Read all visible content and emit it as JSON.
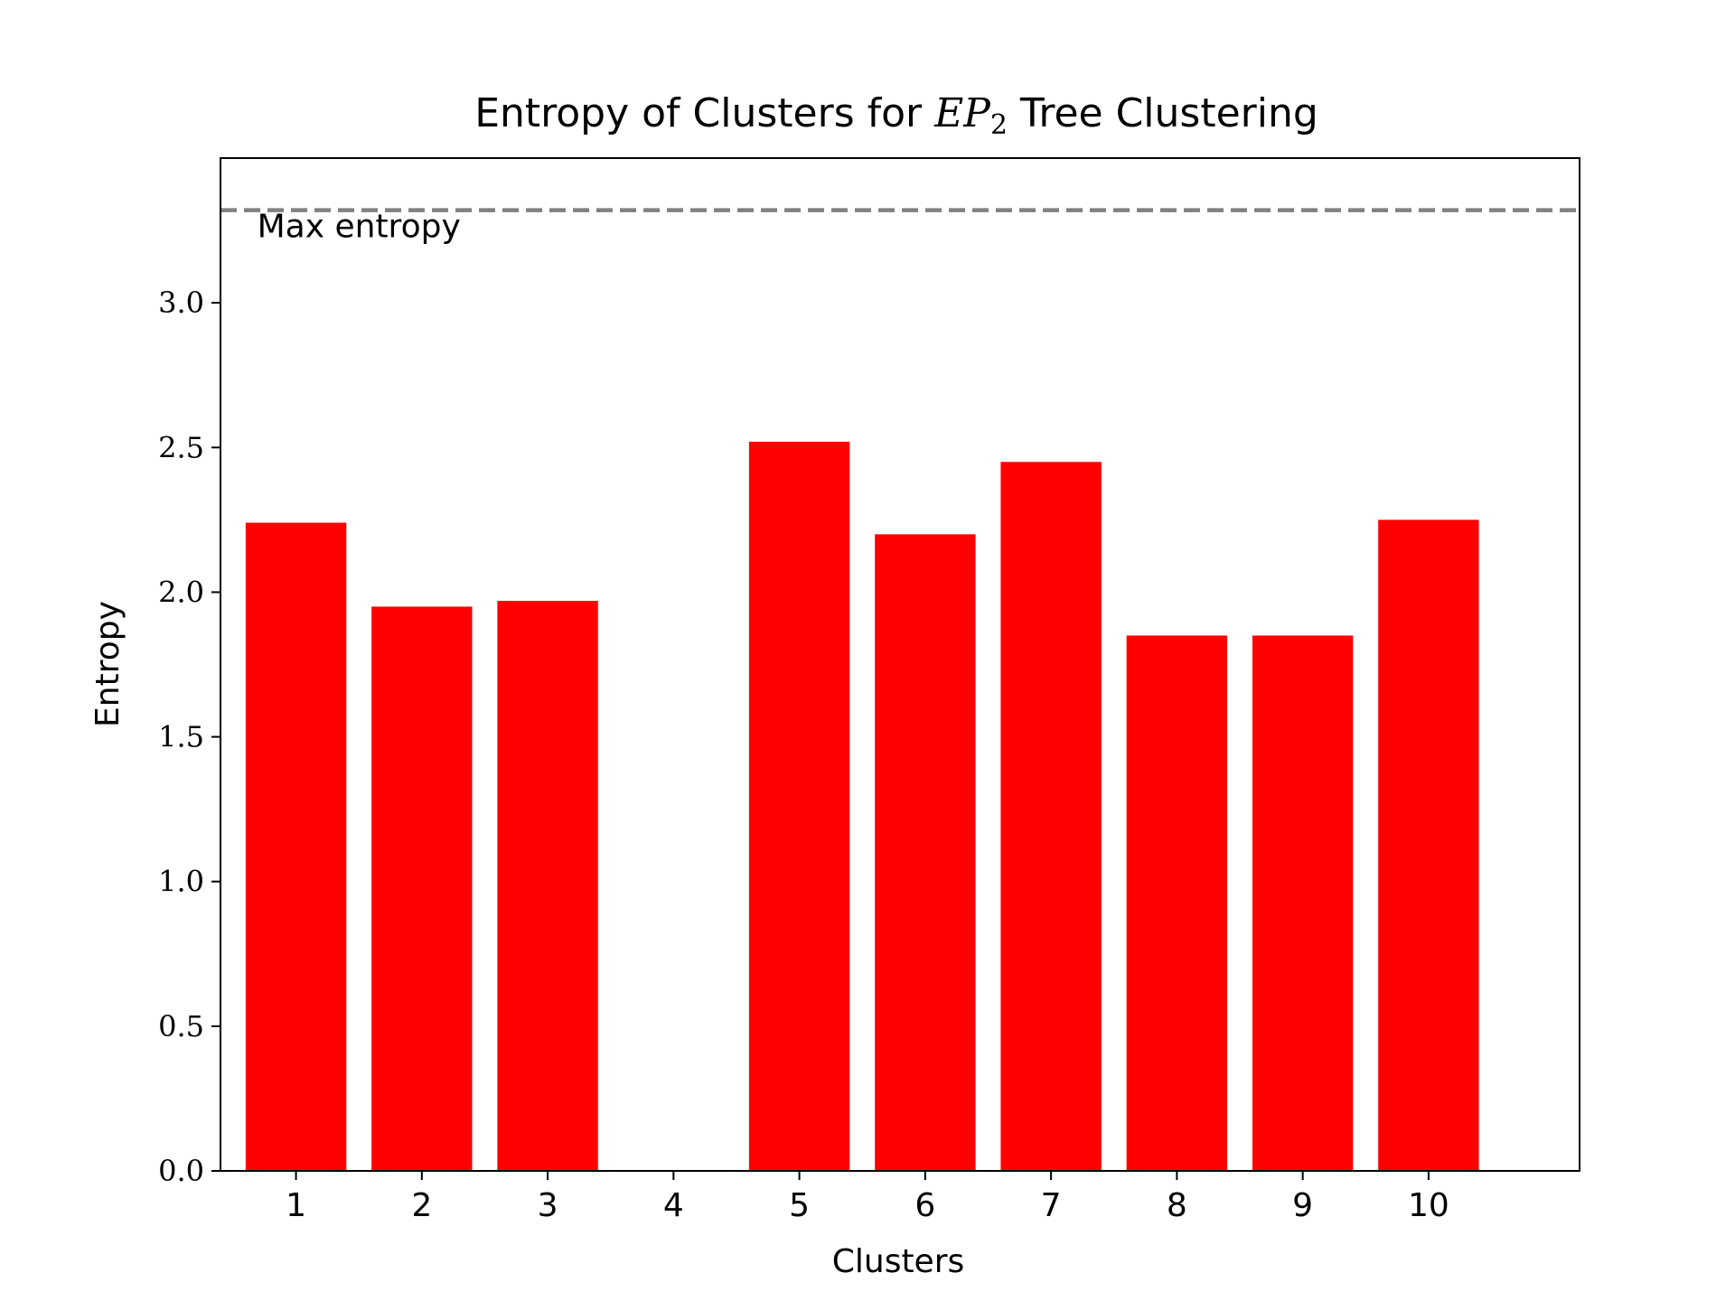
{
  "chart_data": {
    "type": "bar",
    "title_prefix": "Entropy of Clusters for ",
    "title_math_main": "EP",
    "title_math_sub": "2",
    "title_suffix": " Tree Clustering",
    "xlabel": "Clusters",
    "ylabel": "Entropy",
    "categories": [
      "1",
      "2",
      "3",
      "4",
      "5",
      "6",
      "7",
      "8",
      "9",
      "10"
    ],
    "values": [
      2.24,
      1.95,
      1.97,
      0.0,
      2.52,
      2.2,
      2.45,
      1.85,
      1.85,
      2.25
    ],
    "ylim": [
      0.0,
      3.5
    ],
    "yticks": [
      "0.0",
      "0.5",
      "1.0",
      "1.5",
      "2.0",
      "2.5",
      "3.0"
    ],
    "bar_color": "#ff0000",
    "max_entropy": {
      "value": 3.32,
      "label": "Max entropy",
      "color": "#808080"
    },
    "grid": false,
    "legend": "none"
  }
}
